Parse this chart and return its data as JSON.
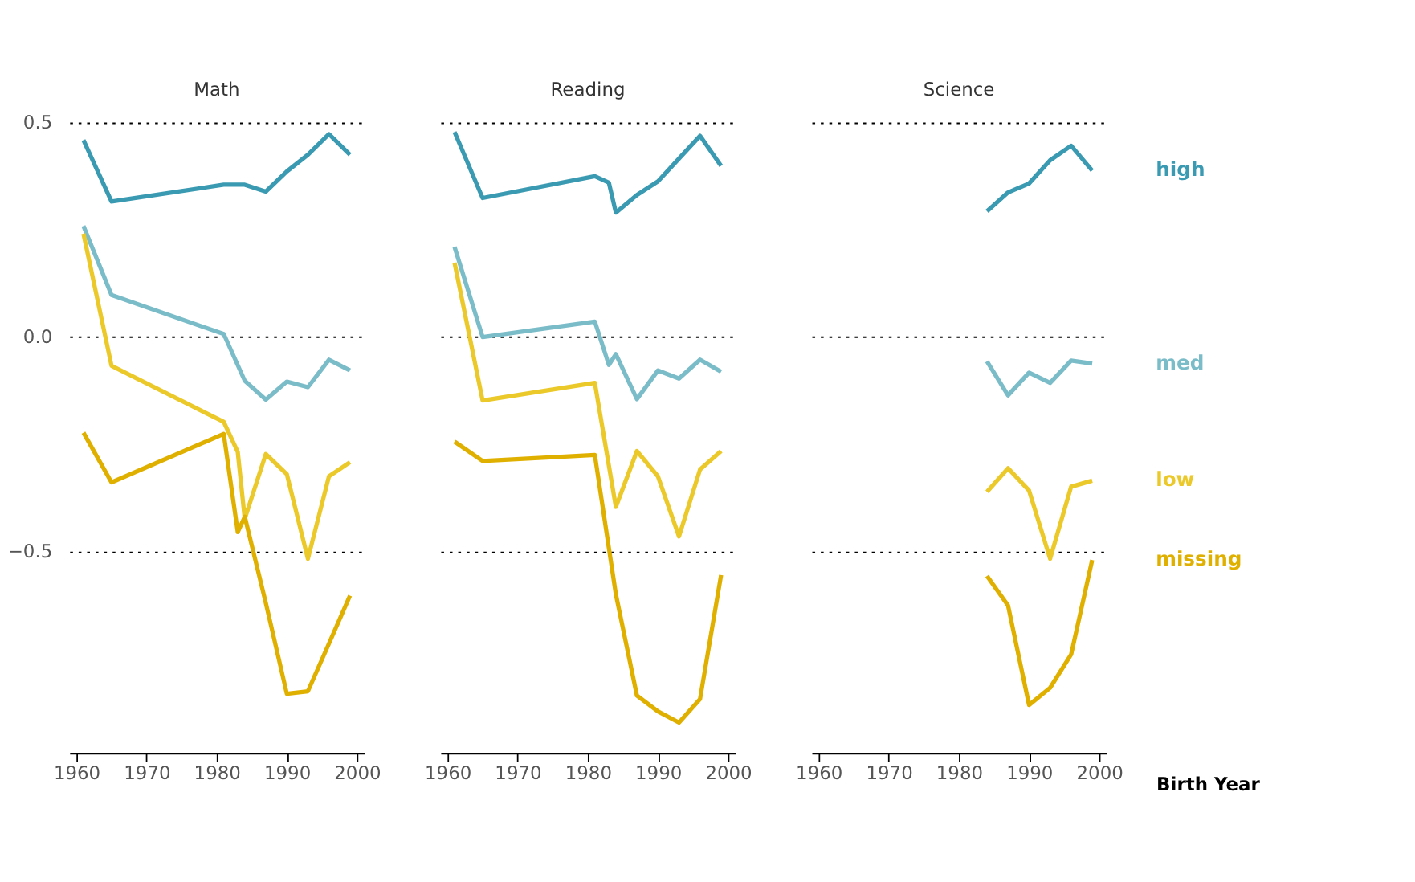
{
  "chart_data": [
    {
      "type": "line",
      "title": "Math",
      "x": [
        1961,
        1965,
        1981,
        1983,
        1984,
        1987,
        1990,
        1993,
        1996,
        1999
      ],
      "xlim": [
        1959,
        2001
      ],
      "xticks": [
        1960,
        1970,
        1980,
        1990,
        2000
      ],
      "ylim": [
        -0.97,
        0.5
      ],
      "yticks": [
        {
          "value": -0.5,
          "label": "−0.5"
        },
        {
          "value": 0,
          "label": "0.0"
        },
        0.5
      ],
      "grid": "y",
      "line_style": "solid",
      "marker": "none",
      "series": [
        {
          "color": "#3a9ab2",
          "x": [
            1961,
            1965,
            1981,
            1984,
            1987,
            1990,
            1993,
            1996,
            1999
          ],
          "values": [
            0.459,
            0.316,
            0.355,
            0.355,
            0.339,
            0.386,
            0.425,
            0.473,
            0.425
          ]
        },
        {
          "color": "#7bbcc9",
          "x": [
            1961,
            1965,
            1981,
            1984,
            1987,
            1990,
            1993,
            1996,
            1999
          ],
          "values": [
            0.259,
            0.098,
            0.007,
            -0.102,
            -0.146,
            -0.104,
            -0.117,
            -0.053,
            -0.078
          ]
        },
        {
          "color": "#ecc92a",
          "values": [
            0.241,
            -0.067,
            -0.198,
            -0.268,
            -0.424,
            -0.273,
            -0.32,
            -0.517,
            -0.325,
            -0.292
          ]
        },
        {
          "color": "#e0b000",
          "values": [
            -0.223,
            -0.339,
            -0.226,
            -0.455,
            -0.419,
            -0.62,
            -0.832,
            -0.826,
            -0.715,
            -0.603
          ]
        }
      ]
    },
    {
      "type": "line",
      "title": "Reading",
      "x": [
        1961,
        1965,
        1981,
        1983,
        1984,
        1987,
        1990,
        1993,
        1996,
        1999
      ],
      "xlim": [
        1959,
        2001
      ],
      "xticks": [
        1960,
        1970,
        1980,
        1990,
        2000
      ],
      "ylim": [
        -0.97,
        0.5
      ],
      "yticks": [
        -0.5,
        0,
        0.5
      ],
      "grid": "y",
      "tick_labels": "x",
      "line_style": "solid",
      "marker": "none",
      "series": [
        {
          "color": "#3a9ab2",
          "values": [
            0.478,
            0.324,
            0.375,
            0.36,
            0.29,
            0.331,
            0.363,
            0.416,
            0.469,
            0.399
          ]
        },
        {
          "color": "#7bbcc9",
          "values": [
            0.21,
            0.0,
            0.036,
            -0.065,
            -0.04,
            -0.145,
            -0.078,
            -0.097,
            -0.053,
            -0.081
          ]
        },
        {
          "color": "#ecc92a",
          "x": [
            1961,
            1965,
            1981,
            1984,
            1987,
            1990,
            1993,
            1996,
            1999
          ],
          "values": [
            0.173,
            -0.148,
            -0.107,
            -0.396,
            -0.266,
            -0.325,
            -0.465,
            -0.309,
            -0.266
          ]
        },
        {
          "color": "#e0b000",
          "x": [
            1961,
            1965,
            1981,
            1984,
            1987,
            1990,
            1993,
            1996,
            1999
          ],
          "values": [
            -0.244,
            -0.289,
            -0.275,
            -0.6,
            -0.836,
            -0.873,
            -0.899,
            -0.844,
            -0.555
          ]
        }
      ]
    },
    {
      "type": "line",
      "title": "Science",
      "xlabel": "Birth Year",
      "x": [
        1984,
        1987,
        1990,
        1993,
        1996,
        1999
      ],
      "xlim": [
        1959,
        2001
      ],
      "xticks": [
        1960,
        1970,
        1980,
        1990,
        2000
      ],
      "ylim": [
        -0.97,
        0.5
      ],
      "yticks": [
        -0.5,
        0,
        0.5
      ],
      "grid": "y",
      "tick_labels": "x",
      "line_style": "solid",
      "marker": "none",
      "series": [
        {
          "name": "high",
          "color": "#3a9ab2",
          "values": [
            0.293,
            0.337,
            0.358,
            0.412,
            0.446,
            0.388
          ]
        },
        {
          "name": "med",
          "color": "#7bbcc9",
          "values": [
            -0.057,
            -0.136,
            -0.083,
            -0.107,
            -0.055,
            -0.062
          ]
        },
        {
          "name": "low",
          "color": "#ecc92a",
          "values": [
            -0.361,
            -0.306,
            -0.358,
            -0.517,
            -0.349,
            -0.335
          ]
        },
        {
          "name": "missing",
          "color": "#e0b000",
          "values": [
            -0.557,
            -0.626,
            -0.858,
            -0.818,
            -0.74,
            -0.52
          ]
        }
      ]
    }
  ]
}
